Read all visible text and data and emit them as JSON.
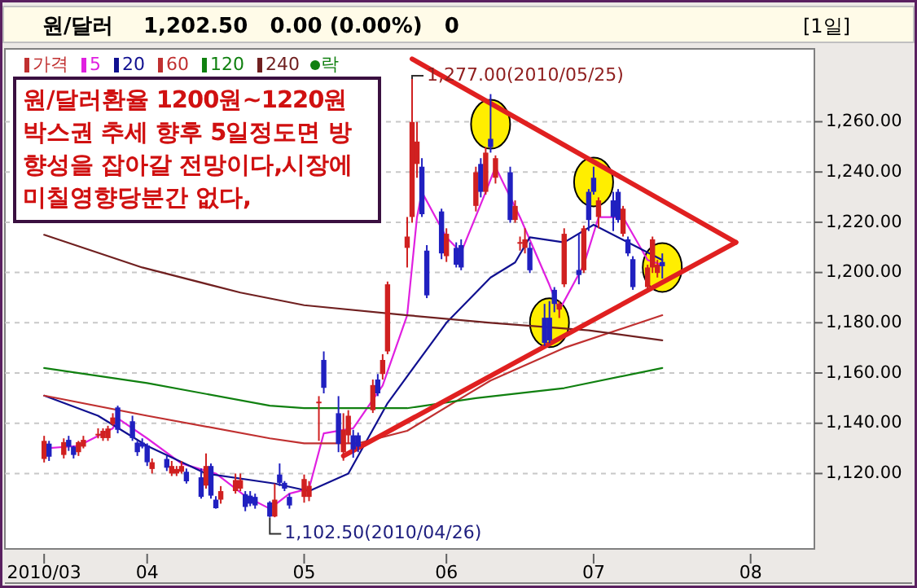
{
  "chart_data": {
    "type": "candlestick",
    "title": "원/달러",
    "subtitle": "1,202.50   0.00 (0.00%)   0",
    "annotations": [
      "원/달러환율 1200원~1220원 박스권 추세 향후 5일정도면 방향성을 잡아갈 전망이다,시장에 미칠영향당분간 없다,",
      "[1일]",
      {
        "text": "1,277.00(2010/05/25)",
        "x": "2010-05-25",
        "y": 1277
      },
      {
        "text": "1,102.50(2010/04/26)",
        "x": "2010-04-26",
        "y": 1102.5
      }
    ],
    "xlim": [
      "2010-03-03",
      "2010-08-15"
    ],
    "xticks": [
      {
        "value": "2010-03-11",
        "label": "2010/03"
      },
      {
        "value": "2010-04-01",
        "label": "04"
      },
      {
        "value": "2010-05-03",
        "label": "05"
      },
      {
        "value": "2010-06-01",
        "label": "06"
      },
      {
        "value": "2010-07-01",
        "label": "07"
      },
      {
        "value": "2010-08-02",
        "label": "08"
      }
    ],
    "ylim": [
      1090,
      1289
    ],
    "yticks": [
      {
        "value": 1120,
        "label": "1,120.00"
      },
      {
        "value": 1140,
        "label": "1,140.00"
      },
      {
        "value": 1160,
        "label": "1,160.00"
      },
      {
        "value": 1180,
        "label": "1,180.00"
      },
      {
        "value": 1200,
        "label": "1,200.00"
      },
      {
        "value": 1220,
        "label": "1,220.00"
      },
      {
        "value": 1240,
        "label": "1,240.00"
      },
      {
        "value": 1260,
        "label": "1,260.00"
      }
    ],
    "grid": "y",
    "legend": "top left",
    "series": [
      {
        "name": "가격",
        "type": "candlestick",
        "color": "#c03030",
        "x": [
          "2010-03-11",
          "2010-03-12",
          "2010-03-15",
          "2010-03-16",
          "2010-03-17",
          "2010-03-18",
          "2010-03-19",
          "2010-03-22",
          "2010-03-23",
          "2010-03-24",
          "2010-03-25",
          "2010-03-26",
          "2010-03-29",
          "2010-03-30",
          "2010-03-31",
          "2010-04-01",
          "2010-04-02",
          "2010-04-05",
          "2010-04-06",
          "2010-04-07",
          "2010-04-08",
          "2010-04-09",
          "2010-04-12",
          "2010-04-13",
          "2010-04-14",
          "2010-04-15",
          "2010-04-16",
          "2010-04-19",
          "2010-04-20",
          "2010-04-21",
          "2010-04-22",
          "2010-04-23",
          "2010-04-26",
          "2010-04-27",
          "2010-04-28",
          "2010-04-29",
          "2010-04-30",
          "2010-05-03",
          "2010-05-04",
          "2010-05-06",
          "2010-05-07",
          "2010-05-10",
          "2010-05-11",
          "2010-05-12",
          "2010-05-13",
          "2010-05-14",
          "2010-05-17",
          "2010-05-18",
          "2010-05-19",
          "2010-05-20",
          "2010-05-24",
          "2010-05-25",
          "2010-05-26",
          "2010-05-27",
          "2010-05-28",
          "2010-05-31",
          "2010-06-01",
          "2010-06-03",
          "2010-06-04",
          "2010-06-07",
          "2010-06-08",
          "2010-06-09",
          "2010-06-10",
          "2010-06-11",
          "2010-06-14",
          "2010-06-15",
          "2010-06-16",
          "2010-06-17",
          "2010-06-18",
          "2010-06-21",
          "2010-06-22",
          "2010-06-23",
          "2010-06-24",
          "2010-06-25",
          "2010-06-28",
          "2010-06-29",
          "2010-06-30",
          "2010-07-01",
          "2010-07-02",
          "2010-07-05",
          "2010-07-06",
          "2010-07-07",
          "2010-07-08",
          "2010-07-09",
          "2010-07-12",
          "2010-07-13",
          "2010-07-14",
          "2010-07-15"
        ],
        "ohlc": [
          [
            1125.8,
            1135,
            1124.4,
            1133
          ],
          [
            1131.9,
            1133,
            1125,
            1126.7
          ],
          [
            1127.4,
            1134,
            1126,
            1132.5
          ],
          [
            1133.4,
            1135,
            1129,
            1130.7
          ],
          [
            1130.7,
            1131,
            1126,
            1127.4
          ],
          [
            1128.5,
            1133,
            1127,
            1132.5
          ],
          [
            1130.7,
            1135,
            1130,
            1133.4
          ],
          [
            1135.6,
            1138,
            1134,
            1135.8
          ],
          [
            1134.1,
            1138,
            1133,
            1137
          ],
          [
            1134.1,
            1139,
            1133,
            1137.9
          ],
          [
            1139.7,
            1144,
            1139,
            1142.3
          ],
          [
            1146.3,
            1147,
            1136,
            1137.4
          ],
          [
            1140.8,
            1143,
            1133,
            1134.1
          ],
          [
            1132.3,
            1133,
            1127,
            1128.5
          ],
          [
            1132.3,
            1134,
            1130,
            1130.7
          ],
          [
            1131.2,
            1132,
            1123,
            1124.5
          ],
          [
            1121.8,
            1126,
            1120,
            1124.5
          ],
          [
            1125.8,
            1127,
            1121,
            1122.3
          ],
          [
            1120,
            1125,
            1119,
            1123
          ],
          [
            1120,
            1123,
            1119,
            1121.8
          ],
          [
            1120.7,
            1125,
            1120,
            1123
          ],
          [
            1120.7,
            1122,
            1116,
            1116.9
          ],
          [
            1118.5,
            1122,
            1110,
            1110.7
          ],
          [
            1115.2,
            1128,
            1114,
            1123
          ],
          [
            1123,
            1124,
            1110,
            1111.2
          ],
          [
            1109.6,
            1111,
            1106,
            1106.2
          ],
          [
            1109.6,
            1115,
            1108,
            1113
          ],
          [
            1113,
            1120,
            1112,
            1117.4
          ],
          [
            1114,
            1120,
            1113,
            1117.4
          ],
          [
            1111.8,
            1113,
            1105,
            1106.7
          ],
          [
            1111.2,
            1113,
            1107,
            1108
          ],
          [
            1110.7,
            1112,
            1106,
            1107.3
          ],
          [
            1108.5,
            1109,
            1102.5,
            1102.9
          ],
          [
            1102.9,
            1116,
            1102.6,
            1109.6
          ],
          [
            1119.6,
            1124,
            1115,
            1116.3
          ],
          [
            1116.3,
            1117,
            1113,
            1114
          ],
          [
            1110.7,
            1112,
            1106,
            1107.3
          ],
          [
            1110.7,
            1119.6,
            1108.4,
            1117.8
          ],
          [
            1110.7,
            1117,
            1109,
            1115.1
          ],
          [
            1148.5,
            1150.8,
            1133,
            1148.6
          ],
          [
            1165.2,
            1168.6,
            1151.9,
            1154.1
          ],
          [
            1144,
            1150.8,
            1128.5,
            1131.8
          ],
          [
            1128.5,
            1144,
            1125.1,
            1137.4
          ],
          [
            1135.2,
            1145.2,
            1131.8,
            1143
          ],
          [
            1135.2,
            1137.4,
            1126.3,
            1129.6
          ],
          [
            1135.2,
            1136.3,
            1128.5,
            1130.7
          ],
          [
            1145.2,
            1157.4,
            1144.1,
            1155.2
          ],
          [
            1157.4,
            1159.6,
            1150.8,
            1151.9
          ],
          [
            1159.6,
            1167.5,
            1157.4,
            1165.2
          ],
          [
            1168.6,
            1196.4,
            1167.5,
            1195.3
          ],
          [
            1209.8,
            1222.1,
            1202,
            1214.3
          ],
          [
            1222.1,
            1277,
            1219.8,
            1259.9
          ],
          [
            1243.2,
            1259.9,
            1237.7,
            1252.1
          ],
          [
            1242.1,
            1245.5,
            1222.1,
            1223.2
          ],
          [
            1208.7,
            1210.9,
            1189.8,
            1190.9
          ],
          [
            1224.3,
            1225.4,
            1205.3,
            1207.6
          ],
          [
            1206.5,
            1217.6,
            1204.2,
            1215.4
          ],
          [
            1209.8,
            1212,
            1202,
            1203.1
          ],
          [
            1210.9,
            1213.2,
            1200.9,
            1202
          ],
          [
            1226.5,
            1242.1,
            1224.3,
            1239.9
          ],
          [
            1243.2,
            1245.5,
            1229.9,
            1232.1
          ],
          [
            1232.1,
            1249.9,
            1231,
            1247.7
          ],
          [
            1253.2,
            1271,
            1247.7,
            1249.9
          ],
          [
            1237.7,
            1246.6,
            1235.4,
            1245.5
          ],
          [
            1239.9,
            1242.1,
            1219.8,
            1220.9
          ],
          [
            1220.9,
            1228.7,
            1219.8,
            1226.5
          ],
          [
            1212,
            1214.3,
            1208.7,
            1212.1
          ],
          [
            1209.8,
            1217.6,
            1207.6,
            1213.2
          ],
          [
            1209.8,
            1212,
            1199.8,
            1200.9
          ],
          [
            1182,
            1187.5,
            1170.8,
            1172
          ],
          [
            1182,
            1188.6,
            1171.9,
            1173
          ],
          [
            1193.1,
            1194.2,
            1184.2,
            1187.5
          ],
          [
            1185.3,
            1188.6,
            1181.9,
            1187.5
          ],
          [
            1195.3,
            1217.6,
            1194.2,
            1215.4
          ],
          [
            1201,
            1215.4,
            1195.3,
            1199
          ],
          [
            1200.9,
            1218.7,
            1199.8,
            1217.6
          ],
          [
            1232.1,
            1233.2,
            1216.5,
            1220.9
          ],
          [
            1237.7,
            1242.1,
            1231,
            1232.1
          ],
          [
            1222.1,
            1229.9,
            1217.6,
            1228.7
          ],
          [
            1228.7,
            1232.1,
            1216.5,
            1222.1
          ],
          [
            1232.1,
            1233.2,
            1219.8,
            1220.9
          ],
          [
            1215.4,
            1226.5,
            1214.3,
            1225.4
          ],
          [
            1213.2,
            1214.3,
            1206.5,
            1207.6
          ],
          [
            1205.3,
            1206.5,
            1193.1,
            1194.2
          ],
          [
            1194.2,
            1203.1,
            1193.1,
            1202
          ],
          [
            1202,
            1214.3,
            1199.8,
            1213.2
          ],
          [
            1199.8,
            1205,
            1198,
            1203.1
          ],
          [
            1204.2,
            1207.6,
            1197.6,
            1202.5
          ]
        ],
        "colors": [
          "#d02020",
          "#2020c0",
          "#d02020",
          "#2020c0",
          "#2020c0",
          "#d02020",
          "#d02020",
          "#d02020",
          "#d02020",
          "#d02020",
          "#d02020",
          "#2020c0",
          "#2020c0",
          "#2020c0",
          "#2020c0",
          "#2020c0",
          "#d02020",
          "#2020c0",
          "#d02020",
          "#d02020",
          "#d02020",
          "#2020c0",
          "#2020c0",
          "#d02020",
          "#2020c0",
          "#2020c0",
          "#d02020",
          "#d02020",
          "#d02020",
          "#2020c0",
          "#2020c0",
          "#2020c0",
          "#2020c0",
          "#d02020",
          "#2020c0",
          "#2020c0",
          "#2020c0",
          "#d02020",
          "#d02020",
          "#d02020",
          "#2020c0",
          "#2020c0",
          "#d02020",
          "#d02020",
          "#2020c0",
          "#2020c0",
          "#d02020",
          "#2020c0",
          "#d02020",
          "#d02020",
          "#d02020",
          "#d02020",
          "#d02020",
          "#2020c0",
          "#2020c0",
          "#2020c0",
          "#d02020",
          "#2020c0",
          "#2020c0",
          "#d02020",
          "#2020c0",
          "#d02020",
          "#2020c0",
          "#d02020",
          "#2020c0",
          "#d02020",
          "#d02020",
          "#d02020",
          "#2020c0",
          "#2020c0",
          "#2020c0",
          "#2020c0",
          "#d02020",
          "#d02020",
          "#2020c0",
          "#d02020",
          "#2020c0",
          "#2020c0",
          "#d02020",
          "#2020c0",
          "#2020c0",
          "#d02020",
          "#2020c0",
          "#2020c0",
          "#d02020",
          "#d02020",
          "#d02020",
          "#2020c0"
        ]
      },
      {
        "name": "5",
        "type": "line",
        "color": "#e020e0",
        "x": [
          "2010-03-11",
          "2010-03-18",
          "2010-03-25",
          "2010-03-26",
          "2010-04-01",
          "2010-04-08",
          "2010-04-15",
          "2010-04-21",
          "2010-04-26",
          "2010-04-30",
          "2010-05-04",
          "2010-05-07",
          "2010-05-13",
          "2010-05-19",
          "2010-05-24",
          "2010-05-26",
          "2010-05-27",
          "2010-06-01",
          "2010-06-04",
          "2010-06-09",
          "2010-06-11",
          "2010-06-16",
          "2010-06-22",
          "2010-06-24",
          "2010-06-29",
          "2010-07-02",
          "2010-07-07",
          "2010-07-12",
          "2010-07-15"
        ],
        "values": [
          1130,
          1131,
          1138,
          1142,
          1134,
          1124,
          1120,
          1111,
          1106,
          1112,
          1114,
          1136,
          1138,
          1155,
          1183,
          1222,
          1232,
          1214,
          1208,
          1232,
          1242,
          1222,
          1195,
          1185,
          1203,
          1222,
          1222,
          1205,
          1203
        ]
      },
      {
        "name": "20",
        "type": "line",
        "color": "#101090",
        "x": [
          "2010-03-11",
          "2010-03-22",
          "2010-04-01",
          "2010-04-13",
          "2010-04-27",
          "2010-05-04",
          "2010-05-12",
          "2010-05-20",
          "2010-06-01",
          "2010-06-10",
          "2010-06-15",
          "2010-06-18",
          "2010-06-25",
          "2010-07-01",
          "2010-07-07",
          "2010-07-15"
        ],
        "values": [
          1151,
          1143,
          1131,
          1120,
          1116,
          1113,
          1120,
          1148,
          1180,
          1198,
          1204,
          1214,
          1212,
          1219,
          1213,
          1205
        ]
      },
      {
        "name": "60",
        "type": "line",
        "color": "#c03030",
        "x": [
          "2010-03-11",
          "2010-04-01",
          "2010-04-26",
          "2010-05-03",
          "2010-05-14",
          "2010-05-24",
          "2010-06-04",
          "2010-06-10",
          "2010-06-25",
          "2010-07-15"
        ],
        "values": [
          1151,
          1143,
          1134,
          1132,
          1132,
          1137,
          1150,
          1157,
          1170,
          1183
        ]
      },
      {
        "name": "120",
        "type": "line",
        "color": "#108010",
        "x": [
          "2010-03-11",
          "2010-04-01",
          "2010-04-26",
          "2010-05-03",
          "2010-05-24",
          "2010-06-07",
          "2010-06-25",
          "2010-07-15"
        ],
        "values": [
          1162,
          1156,
          1147,
          1146,
          1146,
          1150,
          1154,
          1162
        ]
      },
      {
        "name": "240",
        "type": "line",
        "color": "#702020",
        "x": [
          "2010-03-11",
          "2010-03-31",
          "2010-04-20",
          "2010-05-03",
          "2010-05-24",
          "2010-06-10",
          "2010-06-30",
          "2010-07-15"
        ],
        "values": [
          1215,
          1202,
          1192,
          1187,
          1183,
          1180,
          1177,
          1173
        ]
      },
      {
        "name": "락",
        "type": "scatter",
        "color": "#108010"
      },
      {
        "type": "scatter",
        "color": "#ffee00",
        "marker": "circle",
        "x": [
          "2010-06-10",
          "2010-07-01",
          "2010-06-22",
          "2010-07-15"
        ],
        "values": [
          1259,
          1236,
          1180,
          1202
        ]
      },
      {
        "type": "line",
        "color": "#e02020",
        "x": [
          "2010-05-25",
          "2010-07-30"
        ],
        "values": [
          1285,
          1212
        ]
      },
      {
        "type": "line",
        "color": "#e02020",
        "x": [
          "2010-05-11",
          "2010-07-30"
        ],
        "values": [
          1127,
          1212
        ]
      }
    ]
  }
}
